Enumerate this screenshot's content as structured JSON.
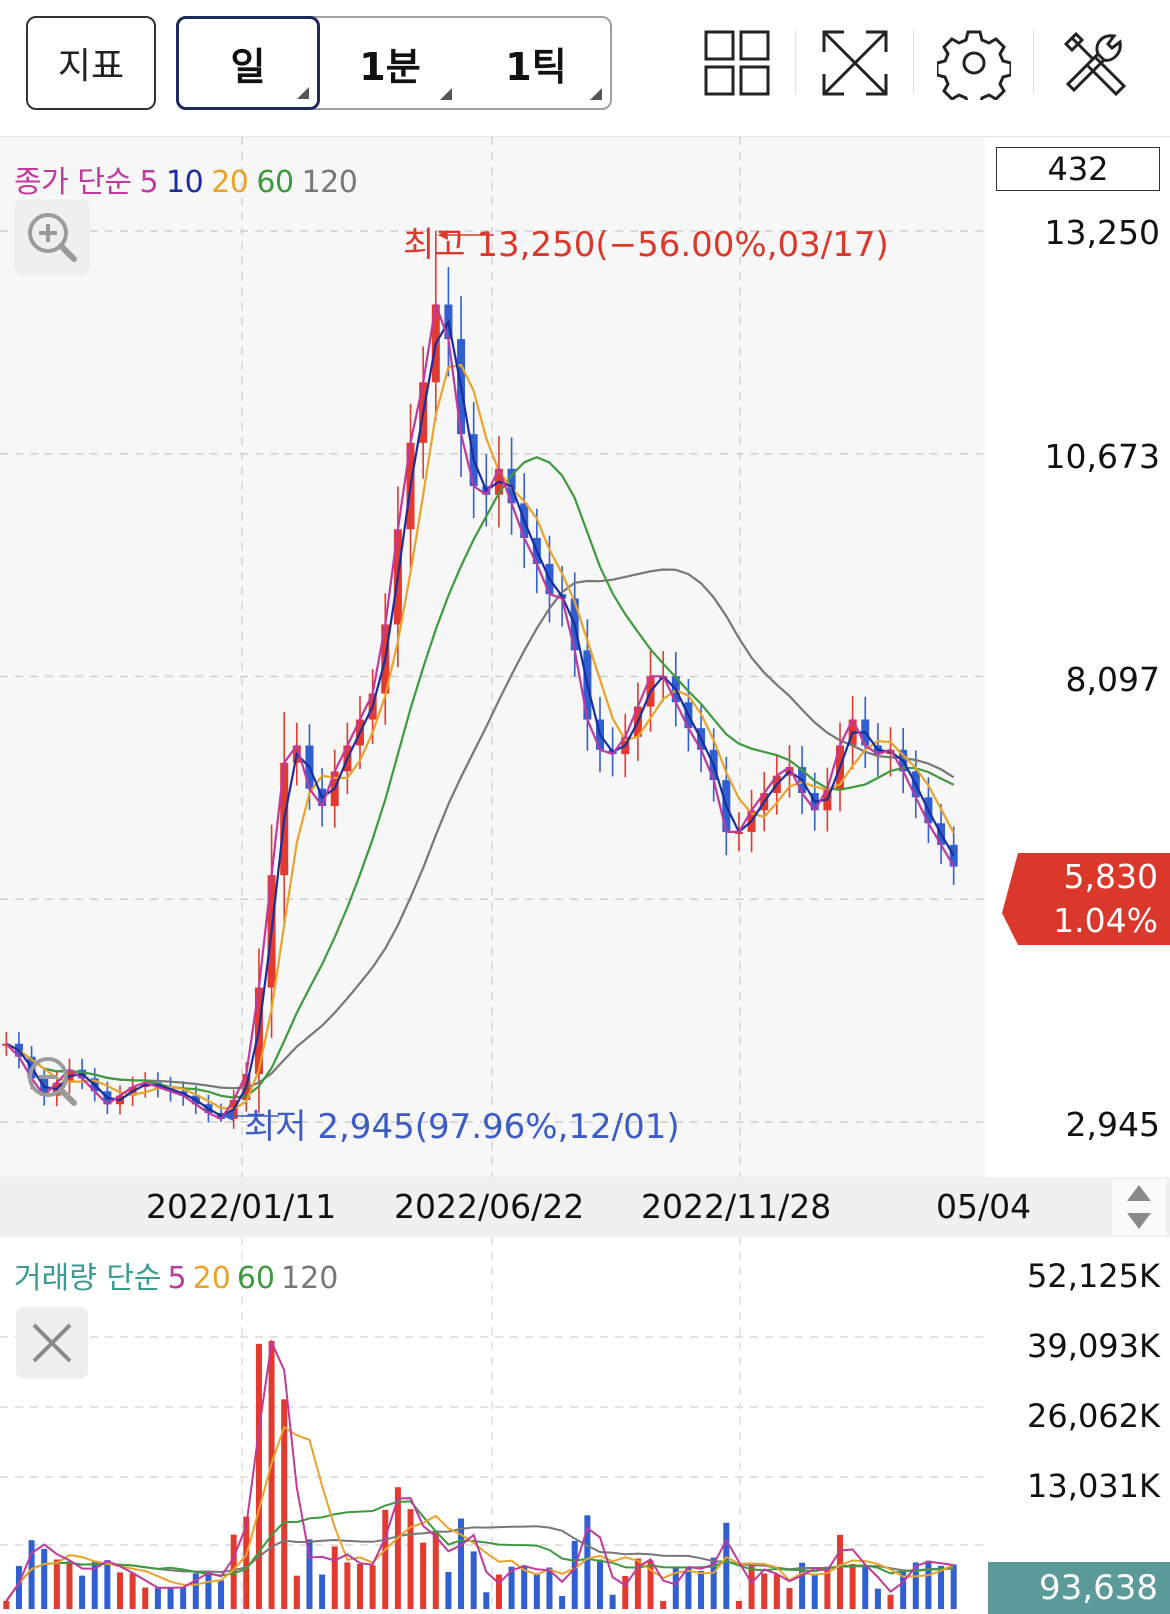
{
  "toolbar": {
    "indicator_label": "지표",
    "periods": [
      "일",
      "1분",
      "1틱"
    ],
    "icons": [
      "layout-grid-icon",
      "fullscreen-icon",
      "gear-icon",
      "tools-icon"
    ]
  },
  "price_legend": {
    "label": "종가 단순",
    "periods": [
      "5",
      "10",
      "20",
      "60",
      "120"
    ],
    "colors": [
      "#c0399e",
      "#1a2d9c",
      "#e8a42a",
      "#3d9a3d",
      "#777777"
    ]
  },
  "candle_count": "432",
  "price_axis_labels": [
    "13,250",
    "10,673",
    "8,097",
    "2,945"
  ],
  "last_price": {
    "price": "5,830",
    "change": "1.04%",
    "color": "#d9382a"
  },
  "x_axis_labels": [
    "2022/01/11",
    "2022/06/22",
    "2022/11/28",
    "05/04"
  ],
  "high_annotation": "최고 13,250(−56.00%,03/17)",
  "low_annotation": "최저 2,945(97.96%,12/01)",
  "volume_legend": {
    "label": "거래량 단순",
    "periods": [
      "5",
      "20",
      "60",
      "120"
    ],
    "colors": [
      "#c0399e",
      "#e8a42a",
      "#3d9a3d",
      "#777777"
    ]
  },
  "volume_axis_labels": [
    "52,125K",
    "39,093K",
    "26,062K",
    "13,031K"
  ],
  "volume_last": "93,638",
  "chart_data": [
    {
      "type": "line",
      "subtype": "candlestick",
      "x_ticks": [
        "2022/01/11",
        "2022/06/22",
        "2022/11/28",
        "05/04"
      ],
      "y_ticks": [
        13250,
        10673,
        8097,
        2945
      ],
      "ylim": [
        2945,
        13250
      ],
      "grid": true,
      "series": [
        {
          "name": "5",
          "color": "#c0399e"
        },
        {
          "name": "10",
          "color": "#1a2d9c"
        },
        {
          "name": "20",
          "color": "#e8a42a"
        },
        {
          "name": "60",
          "color": "#3d9a3d"
        },
        {
          "name": "120",
          "color": "#777777"
        }
      ],
      "close": [
        3850,
        3700,
        3450,
        3250,
        3400,
        3550,
        3450,
        3300,
        3150,
        3250,
        3350,
        3400,
        3350,
        3300,
        3250,
        3150,
        3050,
        2980,
        3200,
        3500,
        4500,
        5800,
        7100,
        7300,
        6800,
        6600,
        7000,
        7300,
        7600,
        7900,
        8700,
        9800,
        10800,
        11500,
        12400,
        12000,
        10900,
        10300,
        10200,
        10500,
        10100,
        9700,
        9400,
        9050,
        9000,
        8400,
        7600,
        7250,
        7200,
        7400,
        7750,
        8100,
        8100,
        7800,
        7500,
        7250,
        6900,
        6300,
        6300,
        6550,
        6750,
        6950,
        7050,
        6750,
        6550,
        6800,
        7300,
        7600,
        7300,
        7200,
        7250,
        7000,
        6700,
        6400,
        6150,
        5900
      ],
      "high": 13250,
      "high_date": "03/17",
      "high_pct": "-56.00%",
      "low": 2945,
      "low_date": "12/01",
      "low_pct": "97.96%",
      "last_close": 5830,
      "last_change_pct": 1.04
    },
    {
      "type": "bar",
      "y_ticks": [
        "52,125K",
        "39,093K",
        "26,062K",
        "13,031K"
      ],
      "last_volume": 93638,
      "series": [
        {
          "name": "5",
          "color": "#c0399e"
        },
        {
          "name": "20",
          "color": "#e8a42a"
        },
        {
          "name": "60",
          "color": "#3d9a3d"
        },
        {
          "name": "120",
          "color": "#777777"
        }
      ]
    }
  ]
}
